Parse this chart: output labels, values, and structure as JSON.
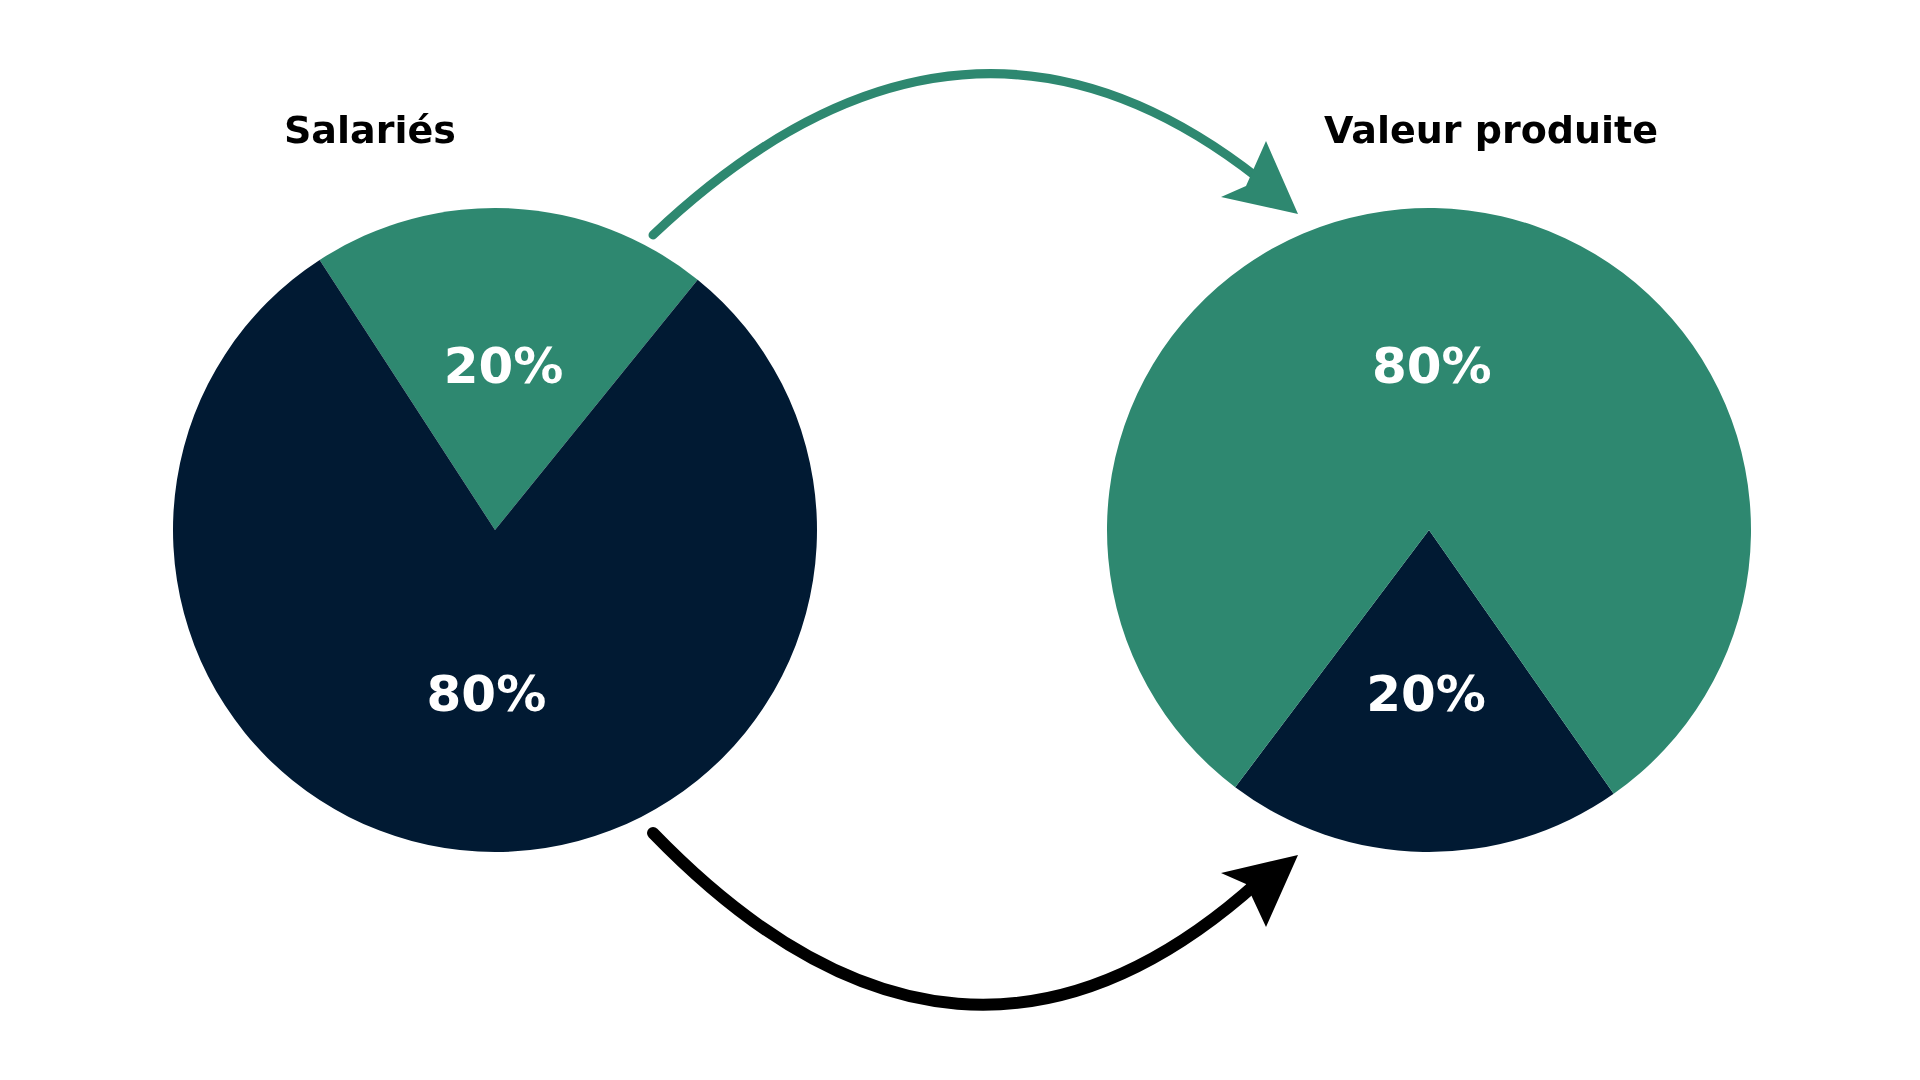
{
  "chart_data": [
    {
      "type": "pie",
      "title": "Salariés",
      "categories": [
        null,
        null
      ],
      "values": [
        20,
        80
      ],
      "colors": [
        "#2e8870",
        "#011a33"
      ],
      "value_labels": [
        "20%",
        "80%"
      ]
    },
    {
      "type": "pie",
      "title": "Valeur produite",
      "categories": [
        null,
        null
      ],
      "values": [
        20,
        80
      ],
      "colors": [
        "#011a33",
        "#2e8870"
      ],
      "value_labels": [
        "20%",
        "80%"
      ]
    }
  ]
}
